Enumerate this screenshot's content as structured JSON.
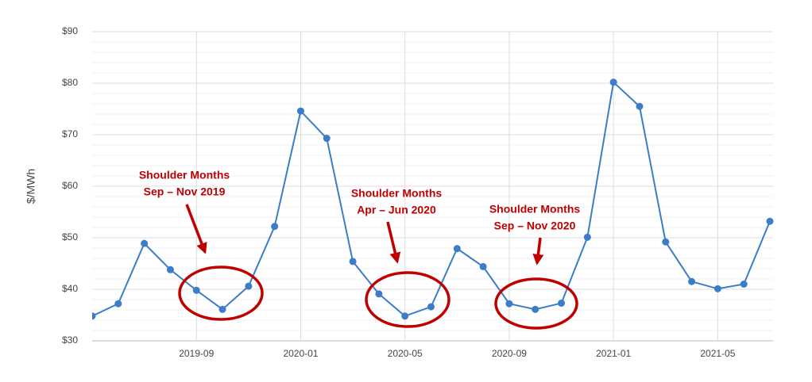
{
  "chart_data": {
    "type": "line",
    "y_label": "$/MWh",
    "x": [
      "2019-05",
      "2019-06",
      "2019-07",
      "2019-08",
      "2019-09",
      "2019-10",
      "2019-11",
      "2019-12",
      "2020-01",
      "2020-02",
      "2020-03",
      "2020-04",
      "2020-05",
      "2020-06",
      "2020-07",
      "2020-08",
      "2020-09",
      "2020-10",
      "2020-11",
      "2020-12",
      "2021-01",
      "2021-02",
      "2021-03",
      "2021-04",
      "2021-05",
      "2021-06",
      "2021-07"
    ],
    "values": [
      34.8,
      37.2,
      48.9,
      43.8,
      39.8,
      36.1,
      40.6,
      52.2,
      74.6,
      69.3,
      45.4,
      39.1,
      34.8,
      36.6,
      47.9,
      44.4,
      37.2,
      36.1,
      37.3,
      50.1,
      80.2,
      75.5,
      49.2,
      41.5,
      40.1,
      41.0,
      53.2
    ],
    "color": "#3b7dc8",
    "xlim": [
      "2019-05",
      "2021-07"
    ],
    "xticks": [
      "2019-09",
      "2020-01",
      "2020-05",
      "2020-09",
      "2021-01",
      "2021-05"
    ],
    "ylim": [
      30,
      90
    ],
    "yticks": [
      {
        "value": 30,
        "label": "$30"
      },
      {
        "value": 40,
        "label": "$40"
      },
      {
        "value": 50,
        "label": "$50"
      },
      {
        "value": 60,
        "label": "$60"
      },
      {
        "value": 70,
        "label": "$70"
      },
      {
        "value": 80,
        "label": "$80"
      },
      {
        "value": 90,
        "label": "$90"
      }
    ],
    "minor_yticks": [
      32,
      34,
      36,
      38,
      42,
      44,
      46,
      48,
      52,
      54,
      56,
      58,
      62,
      64,
      66,
      68,
      72,
      74,
      76,
      78,
      82,
      84,
      86,
      88
    ],
    "grid": true,
    "annotation_color": "#c00000",
    "annotations": [
      {
        "title": "Shoulder Months",
        "period": "Sep – Nov 2019"
      },
      {
        "title": "Shoulder Months",
        "period": "Apr – Jun 2020"
      },
      {
        "title": "Shoulder Months",
        "period": "Sep – Nov 2020"
      }
    ]
  }
}
